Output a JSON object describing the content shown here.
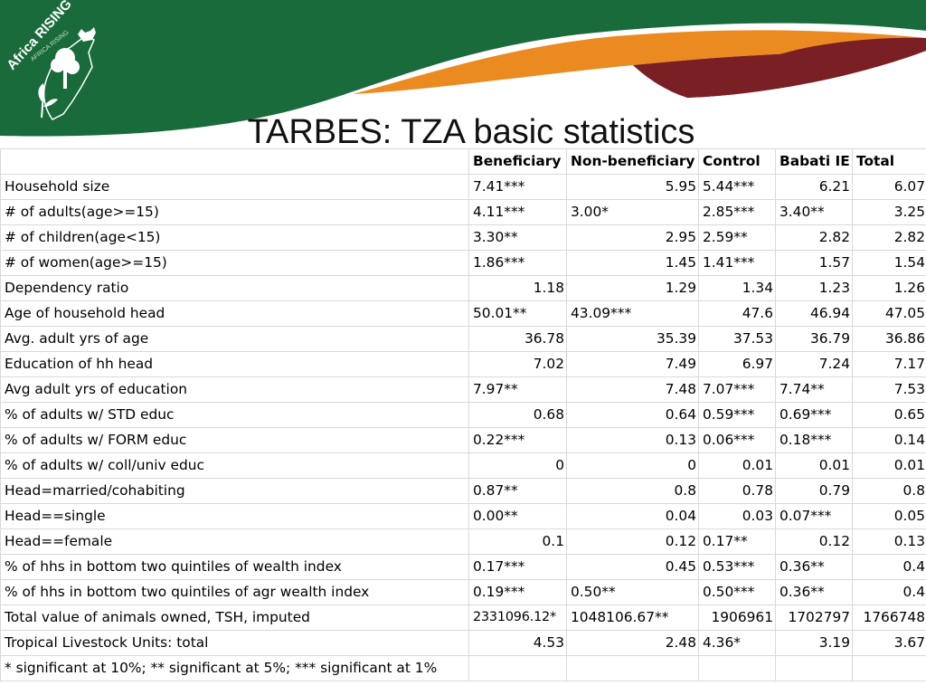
{
  "brand": {
    "logo_text_1": "Africa RISING",
    "logo_text_2": "AFRICA RISING",
    "colors": {
      "green": "#1a6b3c",
      "orange": "#ec8a22",
      "maroon": "#7a1f24"
    }
  },
  "title": "TARBES: TZA basic statistics",
  "table": {
    "columns": [
      "",
      "Beneficiary",
      "Non-beneficiary",
      "Control",
      "Babati IE",
      "Total"
    ],
    "rows": [
      [
        {
          "v": "Household size",
          "a": "l"
        },
        {
          "v": "7.41***",
          "a": "l"
        },
        {
          "v": "5.95",
          "a": "r"
        },
        {
          "v": "5.44***",
          "a": "l"
        },
        {
          "v": "6.21",
          "a": "r"
        },
        {
          "v": "6.07",
          "a": "r"
        }
      ],
      [
        {
          "v": "# of adults(age>=15)",
          "a": "l"
        },
        {
          "v": "4.11***",
          "a": "l"
        },
        {
          "v": "3.00*",
          "a": "l"
        },
        {
          "v": "2.85***",
          "a": "l"
        },
        {
          "v": "3.40**",
          "a": "l"
        },
        {
          "v": "3.25",
          "a": "r"
        }
      ],
      [
        {
          "v": "# of children(age<15)",
          "a": "l"
        },
        {
          "v": "3.30**",
          "a": "l"
        },
        {
          "v": "2.95",
          "a": "r"
        },
        {
          "v": "2.59**",
          "a": "l"
        },
        {
          "v": "2.82",
          "a": "r"
        },
        {
          "v": "2.82",
          "a": "r"
        }
      ],
      [
        {
          "v": "# of women(age>=15)",
          "a": "l"
        },
        {
          "v": "1.86***",
          "a": "l"
        },
        {
          "v": "1.45",
          "a": "r"
        },
        {
          "v": "1.41***",
          "a": "l"
        },
        {
          "v": "1.57",
          "a": "r"
        },
        {
          "v": "1.54",
          "a": "r"
        }
      ],
      [
        {
          "v": "Dependency ratio",
          "a": "l"
        },
        {
          "v": "1.18",
          "a": "r"
        },
        {
          "v": "1.29",
          "a": "r"
        },
        {
          "v": "1.34",
          "a": "r"
        },
        {
          "v": "1.23",
          "a": "r"
        },
        {
          "v": "1.26",
          "a": "r"
        }
      ],
      [
        {
          "v": "Age of household head",
          "a": "l"
        },
        {
          "v": "50.01**",
          "a": "l"
        },
        {
          "v": "43.09***",
          "a": "l"
        },
        {
          "v": "47.6",
          "a": "r"
        },
        {
          "v": "46.94",
          "a": "r"
        },
        {
          "v": "47.05",
          "a": "r"
        }
      ],
      [
        {
          "v": "Avg. adult yrs of age",
          "a": "l"
        },
        {
          "v": "36.78",
          "a": "r"
        },
        {
          "v": "35.39",
          "a": "r"
        },
        {
          "v": "37.53",
          "a": "r"
        },
        {
          "v": "36.79",
          "a": "r"
        },
        {
          "v": "36.86",
          "a": "r"
        }
      ],
      [
        {
          "v": "Education of hh head",
          "a": "l"
        },
        {
          "v": "7.02",
          "a": "r"
        },
        {
          "v": "7.49",
          "a": "r"
        },
        {
          "v": "6.97",
          "a": "r"
        },
        {
          "v": "7.24",
          "a": "r"
        },
        {
          "v": "7.17",
          "a": "r"
        }
      ],
      [
        {
          "v": "Avg adult yrs of education",
          "a": "l"
        },
        {
          "v": "7.97**",
          "a": "l"
        },
        {
          "v": "7.48",
          "a": "r"
        },
        {
          "v": "7.07***",
          "a": "l"
        },
        {
          "v": "7.74**",
          "a": "l"
        },
        {
          "v": "7.53",
          "a": "r"
        }
      ],
      [
        {
          "v": "% of adults w/ STD educ",
          "a": "l"
        },
        {
          "v": "0.68",
          "a": "r"
        },
        {
          "v": "0.64",
          "a": "r"
        },
        {
          "v": "0.59***",
          "a": "l"
        },
        {
          "v": "0.69***",
          "a": "l"
        },
        {
          "v": "0.65",
          "a": "r"
        }
      ],
      [
        {
          "v": "% of adults w/ FORM educ",
          "a": "l"
        },
        {
          "v": "0.22***",
          "a": "l"
        },
        {
          "v": "0.13",
          "a": "r"
        },
        {
          "v": "0.06***",
          "a": "l"
        },
        {
          "v": "0.18***",
          "a": "l"
        },
        {
          "v": "0.14",
          "a": "r"
        }
      ],
      [
        {
          "v": "% of adults w/ coll/univ educ",
          "a": "l"
        },
        {
          "v": "0",
          "a": "r"
        },
        {
          "v": "0",
          "a": "r"
        },
        {
          "v": "0.01",
          "a": "r"
        },
        {
          "v": "0.01",
          "a": "r"
        },
        {
          "v": "0.01",
          "a": "r"
        }
      ],
      [
        {
          "v": "Head=married/cohabiting",
          "a": "l"
        },
        {
          "v": "0.87**",
          "a": "l"
        },
        {
          "v": "0.8",
          "a": "r"
        },
        {
          "v": "0.78",
          "a": "r"
        },
        {
          "v": "0.79",
          "a": "r"
        },
        {
          "v": "0.8",
          "a": "r"
        }
      ],
      [
        {
          "v": "Head==single",
          "a": "l"
        },
        {
          "v": "0.00**",
          "a": "l"
        },
        {
          "v": "0.04",
          "a": "r"
        },
        {
          "v": "0.03",
          "a": "r"
        },
        {
          "v": "0.07***",
          "a": "l"
        },
        {
          "v": "0.05",
          "a": "r"
        }
      ],
      [
        {
          "v": "Head==female",
          "a": "l"
        },
        {
          "v": "0.1",
          "a": "r"
        },
        {
          "v": "0.12",
          "a": "r"
        },
        {
          "v": "0.17**",
          "a": "l"
        },
        {
          "v": "0.12",
          "a": "r"
        },
        {
          "v": "0.13",
          "a": "r"
        }
      ],
      [
        {
          "v": "% of hhs in bottom two quintiles of wealth index",
          "a": "l"
        },
        {
          "v": "0.17***",
          "a": "l"
        },
        {
          "v": "0.45",
          "a": "r"
        },
        {
          "v": "0.53***",
          "a": "l"
        },
        {
          "v": "0.36**",
          "a": "l"
        },
        {
          "v": "0.4",
          "a": "r"
        }
      ],
      [
        {
          "v": "% of hhs in bottom two quintiles of agr wealth index",
          "a": "l"
        },
        {
          "v": "0.19***",
          "a": "l"
        },
        {
          "v": "0.50**",
          "a": "l"
        },
        {
          "v": "0.50***",
          "a": "l"
        },
        {
          "v": "0.36**",
          "a": "l"
        },
        {
          "v": "0.4",
          "a": "r"
        }
      ],
      [
        {
          "v": "Total value of animals owned, TSH, imputed",
          "a": "l"
        },
        {
          "v": "2331096.12*",
          "a": "l"
        },
        {
          "v": "1048106.67**",
          "a": "l"
        },
        {
          "v": "1906961",
          "a": "r"
        },
        {
          "v": "1702797",
          "a": "r"
        },
        {
          "v": "1766748",
          "a": "r"
        }
      ],
      [
        {
          "v": "Tropical Livestock Units: total",
          "a": "l"
        },
        {
          "v": "4.53",
          "a": "r"
        },
        {
          "v": "2.48",
          "a": "r"
        },
        {
          "v": "4.36*",
          "a": "l"
        },
        {
          "v": "3.19",
          "a": "r"
        },
        {
          "v": "3.67",
          "a": "r"
        }
      ]
    ],
    "footnote": "* significant at 10%; ** significant at 5%; *** significant at 1%"
  }
}
